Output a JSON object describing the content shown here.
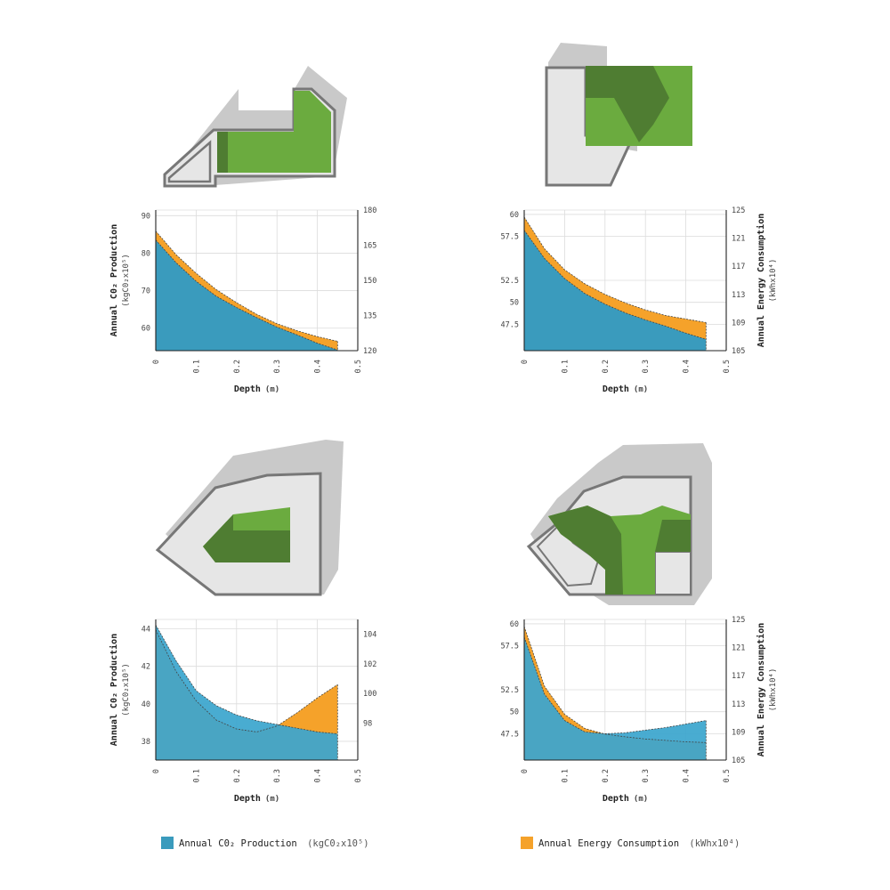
{
  "legend": {
    "co2_label": "Annual C0₂ Production",
    "co2_unit": "(kgC0₂x10⁵)",
    "energy_label": "Annual Energy Consumption",
    "energy_unit": "(kWhx10⁴)"
  },
  "colors": {
    "co2": "#3a9bbd",
    "energy": "#f5a22a",
    "co2_light": "#3fb5e5",
    "green": "#6bab3f",
    "green_dark": "#4f7d32",
    "shadow": "#c8c8c8",
    "building": "#e6e6e6",
    "building_edge": "#777777"
  },
  "charts": [
    {
      "ylabel": "Annual C0₂ Production",
      "yunit": "(kgC0₂x10⁵)",
      "y2label": "",
      "y2unit": "",
      "xlabel": "Depth",
      "xunit": "(m)"
    },
    {
      "ylabel": "",
      "yunit": "",
      "y2label": "Annual Energy Consumption",
      "y2unit": "(kWhx10⁴)",
      "xlabel": "Depth",
      "xunit": "(m)"
    },
    {
      "ylabel": "Annual C0₂ Production",
      "yunit": "(kgC0₂x10⁵)",
      "y2label": "",
      "y2unit": "",
      "xlabel": "Depth",
      "xunit": "(m)"
    },
    {
      "ylabel": "",
      "yunit": "",
      "y2label": "Annual Energy Consumption",
      "y2unit": "(kWhx10⁴)",
      "xlabel": "Depth",
      "xunit": "(m)"
    }
  ],
  "chart_data": [
    {
      "type": "area",
      "x_ticks": [
        "0",
        "0.1",
        "0.2",
        "0.3",
        "0.4",
        "0.5"
      ],
      "xlim": [
        0,
        0.5
      ],
      "y_ticks": [
        "90",
        "80",
        "70",
        "60"
      ],
      "y_tick_values": [
        90,
        80,
        70,
        60
      ],
      "ylim": [
        54,
        91.5
      ],
      "y2_ticks": [
        "180",
        "165",
        "150",
        "135",
        "120"
      ],
      "y2_tick_values": [
        180,
        165,
        150,
        135,
        120
      ],
      "y2lim": [
        120,
        180
      ],
      "x": [
        0,
        0.05,
        0.1,
        0.15,
        0.2,
        0.25,
        0.3,
        0.35,
        0.4,
        0.45
      ],
      "series": [
        {
          "name": "Annual C0₂ Production",
          "axis": "left",
          "values": [
            83.5,
            77.5,
            72.5,
            68.5,
            65.5,
            62.8,
            60.3,
            58.2,
            56.0,
            54.2
          ]
        },
        {
          "name": "Annual Energy Consumption",
          "axis": "right",
          "values": [
            171,
            161,
            153,
            146,
            140.5,
            135.5,
            131.5,
            128.5,
            126,
            124
          ]
        }
      ]
    },
    {
      "type": "area",
      "x_ticks": [
        "0",
        "0.1",
        "0.2",
        "0.3",
        "0.4",
        "0.5"
      ],
      "xlim": [
        0,
        0.5
      ],
      "y_ticks": [
        "60",
        "57.5",
        "52.5",
        "50",
        "47.5"
      ],
      "y_tick_values": [
        60,
        57.5,
        52.5,
        50,
        47.5
      ],
      "ylim": [
        44.5,
        60.5
      ],
      "y2_ticks": [
        "125",
        "121",
        "117",
        "113",
        "109",
        "105"
      ],
      "y2_tick_values": [
        125,
        121,
        117,
        113,
        109,
        105
      ],
      "y2lim": [
        105,
        125
      ],
      "x": [
        0,
        0.05,
        0.1,
        0.15,
        0.2,
        0.25,
        0.3,
        0.35,
        0.4,
        0.45
      ],
      "series": [
        {
          "name": "Annual C0₂ Production",
          "axis": "left",
          "values": [
            58.2,
            55.0,
            52.7,
            51.0,
            49.8,
            48.8,
            48.0,
            47.3,
            46.5,
            45.8
          ]
        },
        {
          "name": "Annual Energy Consumption",
          "axis": "right",
          "values": [
            124,
            119.5,
            116.5,
            114.5,
            113,
            111.8,
            110.8,
            110,
            109.5,
            109
          ]
        }
      ]
    },
    {
      "type": "area",
      "x_ticks": [
        "0",
        "0.1",
        "0.2",
        "0.3",
        "0.4",
        "0.5"
      ],
      "xlim": [
        0,
        0.5
      ],
      "y_ticks": [
        "44",
        "42",
        "40",
        "38"
      ],
      "y_tick_values": [
        44,
        42,
        40,
        38
      ],
      "ylim": [
        37,
        44.5
      ],
      "y2_ticks": [
        "104",
        "102",
        "100",
        "98"
      ],
      "y2_tick_values": [
        104,
        102,
        100,
        98
      ],
      "y2lim": [
        95.5,
        105
      ],
      "x": [
        0,
        0.05,
        0.1,
        0.15,
        0.2,
        0.25,
        0.3,
        0.35,
        0.4,
        0.45
      ],
      "series": [
        {
          "name": "Annual C0₂ Production",
          "axis": "left",
          "values": [
            44.2,
            42.3,
            40.7,
            39.9,
            39.4,
            39.1,
            38.9,
            38.7,
            38.5,
            38.4
          ]
        },
        {
          "name": "Annual Energy Consumption",
          "axis": "right",
          "values": [
            104.3,
            101.5,
            99.5,
            98.2,
            97.6,
            97.4,
            97.8,
            98.7,
            99.7,
            100.6
          ]
        }
      ]
    },
    {
      "type": "area",
      "x_ticks": [
        "0",
        "0.1",
        "0.2",
        "0.3",
        "0.4",
        "0.5"
      ],
      "xlim": [
        0,
        0.5
      ],
      "y_ticks": [
        "60",
        "57.5",
        "52.5",
        "50",
        "47.5"
      ],
      "y_tick_values": [
        60,
        57.5,
        52.5,
        50,
        47.5
      ],
      "ylim": [
        44.5,
        60.5
      ],
      "y2_ticks": [
        "125",
        "121",
        "117",
        "113",
        "109",
        "105"
      ],
      "y2_tick_values": [
        125,
        121,
        117,
        113,
        109,
        105
      ],
      "y2lim": [
        105,
        125
      ],
      "x": [
        0,
        0.05,
        0.1,
        0.15,
        0.2,
        0.25,
        0.3,
        0.35,
        0.4,
        0.45
      ],
      "series": [
        {
          "name": "Annual C0₂ Production",
          "axis": "left",
          "values": [
            58.5,
            52.0,
            49.0,
            47.7,
            47.5,
            47.6,
            47.9,
            48.2,
            48.6,
            49.0
          ]
        },
        {
          "name": "Annual Energy Consumption",
          "axis": "right",
          "values": [
            124,
            115.5,
            111.5,
            109.5,
            108.7,
            108.3,
            108,
            107.8,
            107.6,
            107.5
          ]
        }
      ]
    }
  ]
}
